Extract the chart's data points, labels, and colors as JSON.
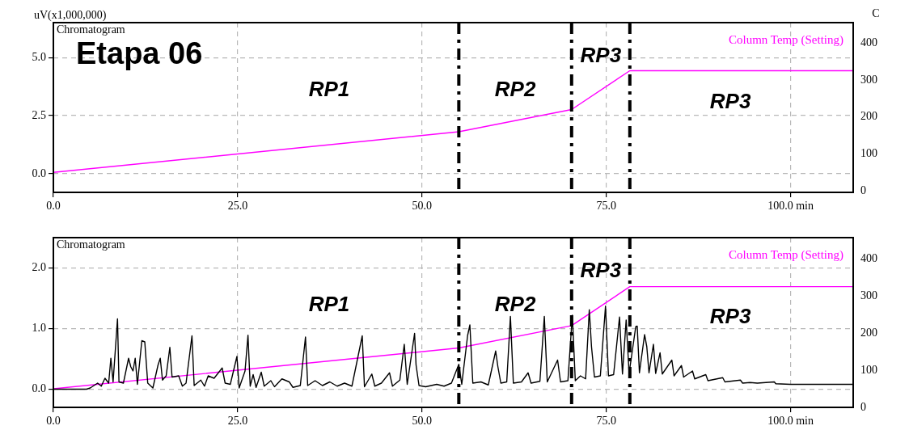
{
  "chart_data": [
    {
      "type": "line",
      "ylabel": "uV(x1,000,000)",
      "y2label": "C",
      "xlim": [
        0,
        108.5
      ],
      "xticks": [
        {
          "value": 0,
          "label": "0.0"
        },
        {
          "value": 25,
          "label": "25.0"
        },
        {
          "value": 50,
          "label": "50.0"
        },
        {
          "value": 75,
          "label": "75.0"
        },
        {
          "value": 100,
          "label": "100.0 min"
        }
      ],
      "ylim": [
        -0.8,
        6.5
      ],
      "yticks": [
        {
          "value": 0,
          "label": "0.0"
        },
        {
          "value": 2.5,
          "label": "2.5"
        },
        {
          "value": 5,
          "label": "5.0"
        }
      ],
      "y2lim": [
        -4,
        455
      ],
      "y2ticks": [
        0,
        100,
        200,
        300,
        400
      ],
      "grid": true,
      "legend": false,
      "marker": "none",
      "line_style": "solid",
      "series": [
        {
          "name": "Column Temp (Setting)",
          "color": "#ff00ff",
          "axis": "y2",
          "x": [
            0,
            55,
            70.3,
            78.2,
            108.5
          ],
          "values": [
            50,
            160,
            220,
            325,
            325
          ]
        }
      ],
      "ref_lines": [
        {
          "axis": "x",
          "value": 55,
          "color": "#000000",
          "line_style": "dashed"
        },
        {
          "axis": "x",
          "value": 70.3,
          "color": "#000000",
          "line_style": "dashed"
        },
        {
          "axis": "x",
          "value": 78.2,
          "color": "#000000",
          "line_style": "dashed"
        }
      ],
      "annotations": [
        "Chromatogram",
        "Etapa 06",
        "RP1",
        "RP2",
        "RP3",
        "RP3"
      ]
    },
    {
      "type": "line",
      "xlim": [
        0,
        108.5
      ],
      "xticks": [
        {
          "value": 0,
          "label": "0.0"
        },
        {
          "value": 25,
          "label": "25.0"
        },
        {
          "value": 50,
          "label": "50.0"
        },
        {
          "value": 75,
          "label": "75.0"
        },
        {
          "value": 100,
          "label": "100.0 min"
        }
      ],
      "ylim": [
        -0.3,
        2.5
      ],
      "yticks": [
        {
          "value": 0,
          "label": "0.0"
        },
        {
          "value": 1,
          "label": "1.0"
        },
        {
          "value": 2,
          "label": "2.0"
        }
      ],
      "y2lim": [
        0,
        457
      ],
      "y2ticks": [
        0,
        100,
        200,
        300,
        400
      ],
      "grid": true,
      "legend": false,
      "marker": "none",
      "line_style": "solid",
      "series": [
        {
          "color": "#000000",
          "x": [
            0,
            4.5,
            5,
            6,
            6.5,
            7,
            7.5,
            7.8,
            8.1,
            8.7,
            8.9,
            9.5,
            10.2,
            10.5,
            10.8,
            11.1,
            11.4,
            12.0,
            12.4,
            12.8,
            13.5,
            14.2,
            14.5,
            14.8,
            15.3,
            15.8,
            16.1,
            17,
            17.5,
            18,
            18.8,
            19.1,
            20,
            20.5,
            21,
            21.8,
            22.9,
            23.3,
            24,
            24.9,
            25.2,
            26,
            26.4,
            26.7,
            27.1,
            27.5,
            28.2,
            28.6,
            29.5,
            30,
            31,
            32,
            32.5,
            33.5,
            34.2,
            34.5,
            35.5,
            36.5,
            37.5,
            38.5,
            39.5,
            40.5,
            41.9,
            42.2,
            43.2,
            43.6,
            44.5,
            45.6,
            46,
            47,
            47.6,
            48,
            49,
            49.2,
            49.6,
            50.5,
            52,
            53,
            54,
            55,
            55.4,
            56.2,
            56.5,
            56.9,
            58,
            59,
            60,
            60.3,
            60.7,
            61.5,
            62,
            62.4,
            63.5,
            64.4,
            64.8,
            66,
            66.6,
            67,
            68.4,
            68.8,
            69.8,
            70.4,
            70.8,
            71.5,
            72.2,
            72.7,
            73,
            73.4,
            74.2,
            74.9,
            75.3,
            76,
            76.8,
            77.2,
            77.7,
            78.1,
            79,
            79.2,
            79.5,
            80.2,
            80.5,
            80.8,
            81.4,
            81.7,
            82.3,
            82.6,
            83.9,
            84.2,
            85.2,
            85.5,
            86.7,
            87,
            88.5,
            88.8,
            90.8,
            91.1,
            93.2,
            93.5,
            94.5,
            95.5,
            97.8,
            98,
            100,
            108.5
          ],
          "values": [
            0,
            0,
            0.02,
            0.1,
            0.05,
            0.18,
            0.1,
            0.51,
            0.12,
            1.16,
            0.12,
            0.1,
            0.51,
            0.37,
            0.3,
            0.51,
            0.08,
            0.8,
            0.78,
            0.1,
            0.02,
            0.4,
            0.51,
            0.15,
            0.22,
            0.69,
            0.2,
            0.22,
            0.05,
            0.1,
            0.88,
            0.06,
            0.15,
            0.05,
            0.22,
            0.18,
            0.35,
            0.1,
            0.08,
            0.54,
            0.02,
            0.3,
            0.89,
            0.05,
            0.24,
            0.03,
            0.28,
            0.05,
            0.14,
            0.04,
            0.17,
            0.12,
            0.03,
            0.06,
            0.86,
            0.06,
            0.14,
            0.06,
            0.12,
            0.05,
            0.1,
            0.05,
            0.88,
            0.04,
            0.25,
            0.05,
            0.1,
            0.27,
            0.05,
            0.15,
            0.74,
            0.08,
            0.92,
            0.4,
            0.06,
            0.04,
            0.08,
            0.05,
            0.1,
            0.41,
            0.08,
            0.89,
            1.06,
            0.1,
            0.12,
            0.07,
            0.63,
            0.37,
            0.1,
            0.12,
            1.2,
            0.1,
            0.12,
            0.27,
            0.1,
            0.13,
            1.2,
            0.12,
            0.48,
            0.12,
            0.14,
            1.22,
            0.14,
            0.22,
            0.17,
            1.31,
            0.7,
            0.2,
            0.22,
            1.37,
            0.22,
            0.24,
            1.19,
            0.25,
            1.14,
            0.26,
            1.03,
            1.04,
            0.27,
            0.9,
            0.7,
            0.27,
            0.74,
            0.26,
            0.6,
            0.25,
            0.48,
            0.22,
            0.39,
            0.2,
            0.3,
            0.17,
            0.24,
            0.14,
            0.19,
            0.12,
            0.15,
            0.1,
            0.11,
            0.1,
            0.12,
            0.09,
            0.08,
            0.08
          ]
        },
        {
          "name": "Column Temp (Setting)",
          "color": "#ff00ff",
          "axis": "y2",
          "x": [
            0,
            55,
            70.3,
            78.2,
            108.5
          ],
          "values": [
            50,
            160,
            220,
            325,
            325
          ]
        }
      ],
      "ref_lines": [
        {
          "axis": "x",
          "value": 55,
          "color": "#000000",
          "line_style": "dashed"
        },
        {
          "axis": "x",
          "value": 70.3,
          "color": "#000000",
          "line_style": "dashed"
        },
        {
          "axis": "x",
          "value": 78.2,
          "color": "#000000",
          "line_style": "dashed"
        }
      ],
      "annotations": [
        "Chromatogram",
        "RP1",
        "RP2",
        "RP3",
        "RP3"
      ]
    }
  ]
}
